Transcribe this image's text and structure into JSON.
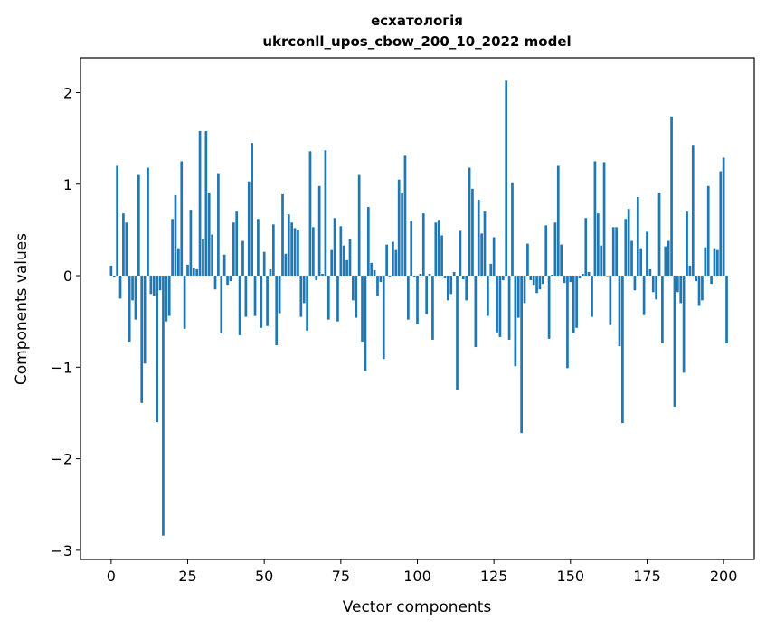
{
  "chart_data": {
    "type": "bar",
    "title_line1": "есхатологія",
    "title_line2": "ukrconll_upos_cbow_200_10_2022 model",
    "xlabel": "Vector components",
    "ylabel": "Components values",
    "xlim": [
      -10,
      210
    ],
    "ylim": [
      -3.1,
      2.38
    ],
    "xticks": [
      0,
      25,
      50,
      75,
      100,
      125,
      150,
      175,
      200
    ],
    "xtick_labels": [
      "0",
      "25",
      "50",
      "75",
      "100",
      "125",
      "150",
      "175",
      "200"
    ],
    "yticks": [
      -3,
      -2,
      -1,
      0,
      1,
      2
    ],
    "ytick_labels": [
      "−3",
      "−2",
      "−1",
      "0",
      "1",
      "2"
    ],
    "bar_color": "#1f77b4",
    "values": [
      0.11,
      -0.02,
      1.2,
      -0.25,
      0.68,
      0.58,
      -0.72,
      -0.27,
      -0.48,
      1.1,
      -1.39,
      -0.96,
      1.18,
      -0.2,
      -0.22,
      -1.6,
      -0.16,
      -2.84,
      -0.5,
      -0.44,
      0.62,
      0.88,
      0.3,
      1.25,
      -0.58,
      0.12,
      0.72,
      0.09,
      0.07,
      1.58,
      0.4,
      1.58,
      0.9,
      0.45,
      -0.15,
      1.12,
      -0.63,
      0.23,
      -0.1,
      -0.06,
      0.58,
      0.7,
      -0.65,
      0.38,
      -0.45,
      1.03,
      1.45,
      -0.44,
      0.62,
      -0.57,
      0.26,
      -0.55,
      0.07,
      0.56,
      -0.76,
      -0.41,
      0.89,
      0.24,
      0.67,
      0.58,
      0.52,
      0.5,
      -0.45,
      -0.3,
      -0.6,
      1.36,
      0.53,
      -0.05,
      0.98,
      0.02,
      1.37,
      -0.48,
      0.28,
      0.63,
      -0.5,
      0.54,
      0.33,
      0.17,
      0.4,
      -0.27,
      -0.46,
      1.1,
      -0.72,
      -1.04,
      0.75,
      0.14,
      0.06,
      -0.22,
      -0.07,
      -0.91,
      0.34,
      -0.02,
      0.37,
      0.28,
      1.05,
      0.9,
      1.31,
      -0.48,
      0.6,
      -0.02,
      -0.53,
      0.02,
      0.68,
      -0.42,
      0.02,
      -0.7,
      0.58,
      0.61,
      0.44,
      -0.03,
      -0.27,
      -0.2,
      0.04,
      -1.25,
      0.49,
      -0.04,
      -0.27,
      1.18,
      0.95,
      -0.78,
      0.83,
      0.46,
      0.7,
      -0.44,
      0.13,
      0.42,
      -0.62,
      -0.67,
      -0.05,
      2.13,
      -0.7,
      1.02,
      -0.99,
      -0.46,
      -1.72,
      -0.3,
      0.35,
      -0.05,
      -0.1,
      -0.19,
      -0.15,
      -0.09,
      0.55,
      -0.69,
      0.01,
      0.58,
      1.2,
      0.34,
      -0.08,
      -1.01,
      -0.07,
      -0.63,
      -0.57,
      -0.03,
      0.02,
      0.63,
      0.04,
      -0.45,
      1.25,
      0.68,
      0.33,
      1.24,
      0.0,
      -0.54,
      0.53,
      0.53,
      -0.77,
      -1.61,
      0.62,
      0.73,
      0.38,
      -0.16,
      0.86,
      0.3,
      -0.43,
      0.48,
      0.07,
      -0.18,
      -0.26,
      0.9,
      -0.74,
      0.32,
      0.38,
      1.74,
      -1.43,
      -0.18,
      -0.3,
      -1.06,
      0.7,
      0.11,
      1.43,
      -0.06,
      -0.33,
      -0.27,
      0.31,
      0.98,
      -0.09,
      0.3,
      0.28,
      1.14,
      1.29,
      -0.74
    ]
  }
}
